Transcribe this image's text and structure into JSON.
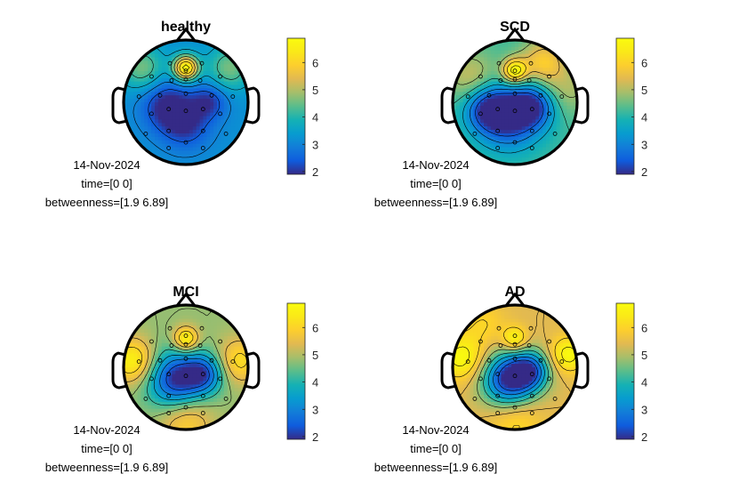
{
  "chart_data": {
    "type": "heatmap",
    "description_kind": "EEG topographic maps",
    "colormap": "parula",
    "color_limits": [
      1.9,
      6.89
    ],
    "colorbar_ticks": [
      2,
      3,
      4,
      5,
      6
    ],
    "panels": [
      {
        "title": "healthy",
        "date": "14-Nov-2024",
        "time_label": "time=[0 0]",
        "range_label": "betweenness=[1.9 6.89]",
        "sources": [
          {
            "x": 0.0,
            "y": 0.55,
            "value": 6.9,
            "sigma": 0.14
          },
          {
            "x": -0.32,
            "y": -0.05,
            "value": 1.9,
            "sigma": 0.28
          },
          {
            "x": 0.38,
            "y": 0.02,
            "value": 2.1,
            "sigma": 0.2
          },
          {
            "x": 0.0,
            "y": -0.35,
            "value": 2.0,
            "sigma": 0.28
          },
          {
            "x": -0.7,
            "y": 0.55,
            "value": 4.6,
            "sigma": 0.25
          },
          {
            "x": 0.7,
            "y": 0.55,
            "value": 4.6,
            "sigma": 0.25
          }
        ],
        "base": 3.2
      },
      {
        "title": "SCD",
        "date": "14-Nov-2024",
        "time_label": "time=[0 0]",
        "range_label": "betweenness=[1.9 6.89]",
        "sources": [
          {
            "x": 0.0,
            "y": 0.5,
            "value": 6.9,
            "sigma": 0.14
          },
          {
            "x": -0.1,
            "y": -0.25,
            "value": 1.9,
            "sigma": 0.34
          },
          {
            "x": 0.3,
            "y": -0.05,
            "value": 2.3,
            "sigma": 0.25
          },
          {
            "x": -0.45,
            "y": -0.1,
            "value": 2.4,
            "sigma": 0.25
          },
          {
            "x": 0.45,
            "y": 0.65,
            "value": 5.8,
            "sigma": 0.25
          },
          {
            "x": -0.7,
            "y": 0.4,
            "value": 5.2,
            "sigma": 0.3
          },
          {
            "x": 0.8,
            "y": 0.2,
            "value": 5.0,
            "sigma": 0.3
          }
        ],
        "base": 4.2
      },
      {
        "title": "MCI",
        "date": "14-Nov-2024",
        "time_label": "time=[0 0]",
        "range_label": "betweenness=[1.9 6.89]",
        "sources": [
          {
            "x": 0.0,
            "y": 0.45,
            "value": 6.9,
            "sigma": 0.14
          },
          {
            "x": -0.15,
            "y": -0.2,
            "value": 1.9,
            "sigma": 0.32
          },
          {
            "x": 0.3,
            "y": -0.1,
            "value": 2.8,
            "sigma": 0.22
          },
          {
            "x": -0.85,
            "y": 0.1,
            "value": 6.7,
            "sigma": 0.25
          },
          {
            "x": 0.85,
            "y": 0.1,
            "value": 6.2,
            "sigma": 0.25
          },
          {
            "x": 0.0,
            "y": -0.85,
            "value": 6.0,
            "sigma": 0.3
          }
        ],
        "base": 4.8
      },
      {
        "title": "AD",
        "date": "14-Nov-2024",
        "time_label": "time=[0 0]",
        "range_label": "betweenness=[1.9 6.89]",
        "sources": [
          {
            "x": 0.0,
            "y": 0.45,
            "value": 6.9,
            "sigma": 0.14
          },
          {
            "x": -0.1,
            "y": -0.2,
            "value": 1.9,
            "sigma": 0.3
          },
          {
            "x": 0.25,
            "y": -0.05,
            "value": 3.0,
            "sigma": 0.22
          },
          {
            "x": -0.85,
            "y": 0.15,
            "value": 6.9,
            "sigma": 0.25
          },
          {
            "x": 0.85,
            "y": 0.2,
            "value": 6.9,
            "sigma": 0.2
          },
          {
            "x": 0.0,
            "y": -0.85,
            "value": 6.2,
            "sigma": 0.3
          },
          {
            "x": -0.5,
            "y": 0.7,
            "value": 6.0,
            "sigma": 0.25
          }
        ],
        "base": 5.4
      }
    ],
    "electrodes": [
      [
        0.0,
        0.55
      ],
      [
        -0.28,
        0.68
      ],
      [
        0.28,
        0.68
      ],
      [
        -0.6,
        0.45
      ],
      [
        -0.25,
        0.38
      ],
      [
        0.25,
        0.38
      ],
      [
        0.6,
        0.45
      ],
      [
        -0.82,
        0.1
      ],
      [
        -0.45,
        0.12
      ],
      [
        0.0,
        0.15
      ],
      [
        0.45,
        0.12
      ],
      [
        0.82,
        0.1
      ],
      [
        -0.6,
        -0.2
      ],
      [
        -0.3,
        -0.12
      ],
      [
        0.0,
        -0.15
      ],
      [
        0.3,
        -0.12
      ],
      [
        0.6,
        -0.2
      ],
      [
        -0.7,
        -0.55
      ],
      [
        -0.3,
        -0.5
      ],
      [
        0.3,
        -0.5
      ],
      [
        0.7,
        -0.55
      ],
      [
        -0.3,
        -0.8
      ],
      [
        0.0,
        -0.7
      ],
      [
        0.3,
        -0.8
      ],
      [
        0.0,
        0.4
      ]
    ]
  }
}
